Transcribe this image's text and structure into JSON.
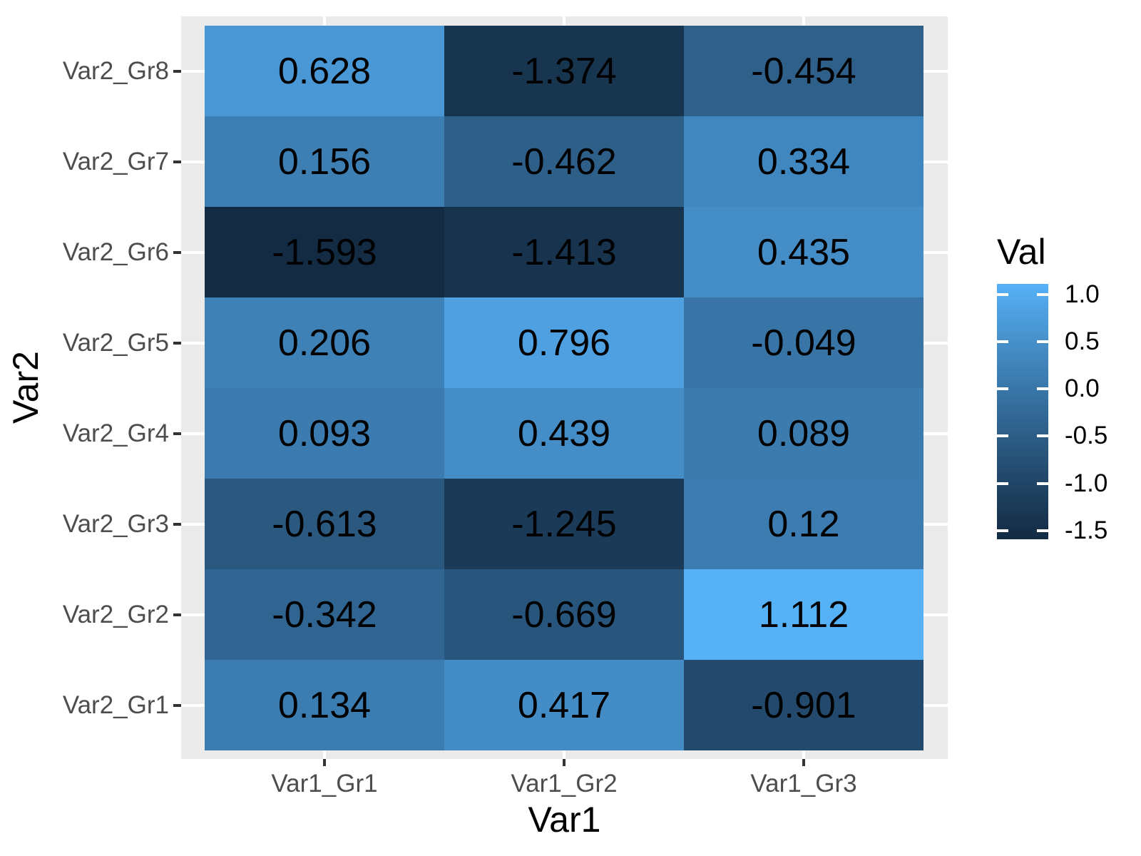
{
  "figure": {
    "background": "#FFFFFF",
    "panel_background": "#EBEBEB",
    "gridline_color": "#FFFFFF",
    "axis_text_color": "#4D4D4D",
    "tick_mark_color": "#333333",
    "cell_text_color": "#000000"
  },
  "chart_data": {
    "type": "heatmap",
    "xlabel": "Var1",
    "ylabel": "Var2",
    "x_categories": [
      "Var1_Gr1",
      "Var1_Gr2",
      "Var1_Gr3"
    ],
    "y_categories_top_to_bottom": [
      "Var2_Gr8",
      "Var2_Gr7",
      "Var2_Gr6",
      "Var2_Gr5",
      "Var2_Gr4",
      "Var2_Gr3",
      "Var2_Gr2",
      "Var2_Gr1"
    ],
    "rows_top_to_bottom": [
      {
        "y": "Var2_Gr8",
        "values": [
          0.628,
          -1.374,
          -0.454
        ]
      },
      {
        "y": "Var2_Gr7",
        "values": [
          0.156,
          -0.462,
          0.334
        ]
      },
      {
        "y": "Var2_Gr6",
        "values": [
          -1.593,
          -1.413,
          0.435
        ]
      },
      {
        "y": "Var2_Gr5",
        "values": [
          0.206,
          0.796,
          -0.049
        ]
      },
      {
        "y": "Var2_Gr4",
        "values": [
          0.093,
          0.439,
          0.089
        ]
      },
      {
        "y": "Var2_Gr3",
        "values": [
          -0.613,
          -1.245,
          0.12
        ]
      },
      {
        "y": "Var2_Gr2",
        "values": [
          -0.342,
          -0.669,
          1.112
        ]
      },
      {
        "y": "Var2_Gr1",
        "values": [
          0.134,
          0.417,
          -0.901
        ]
      }
    ],
    "value_min": -1.593,
    "value_max": 1.112,
    "color_scale": {
      "low": "#132B43",
      "high": "#56B1F7",
      "interpolation": "lab"
    },
    "legend": {
      "title": "Val",
      "position": "right",
      "tick_labels": [
        "1.0",
        "0.5",
        "0.0",
        "-0.5",
        "-1.0",
        "-1.5"
      ],
      "tick_values": [
        1.0,
        0.5,
        0.0,
        -0.5,
        -1.0,
        -1.5
      ]
    },
    "grid": "major-white",
    "cell_labels_shown": true
  }
}
